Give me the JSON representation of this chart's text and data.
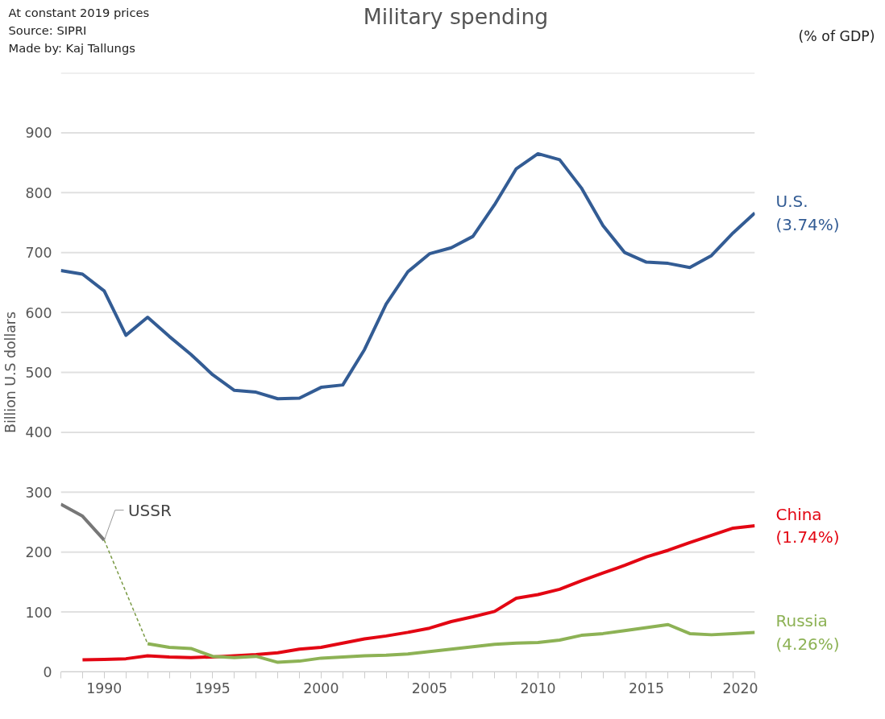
{
  "chart_data": {
    "type": "line",
    "title": "Military spending",
    "ylabel": "Billion U.S dollars",
    "annotations": [
      "At constant 2019 prices",
      "Source: SIPRI",
      "Made by: Kaj Tallungs",
      "(% of GDP)",
      {
        "text": "USSR",
        "x": 1990,
        "y": 220
      }
    ],
    "x": [
      1988,
      1989,
      1990,
      1991,
      1992,
      1993,
      1994,
      1995,
      1996,
      1997,
      1998,
      1999,
      2000,
      2001,
      2002,
      2003,
      2004,
      2005,
      2006,
      2007,
      2008,
      2009,
      2010,
      2011,
      2012,
      2013,
      2014,
      2015,
      2016,
      2017,
      2018,
      2019,
      2020
    ],
    "series": [
      {
        "name": "U.S.\n(3.74%)",
        "color": "#335c94",
        "values": [
          670,
          664,
          636,
          562,
          592,
          560,
          530,
          496,
          470,
          467,
          456,
          457,
          475,
          479,
          538,
          614,
          668,
          698,
          708,
          727,
          780,
          840,
          865,
          855,
          808,
          745,
          700,
          684,
          682,
          675,
          695,
          733,
          766
        ]
      },
      {
        "name": "China\n(1.74%)",
        "color": "#e30613",
        "x": [
          1989,
          1990,
          1991,
          1992,
          1993,
          1994,
          1995,
          1996,
          1997,
          1998,
          1999,
          2000,
          2001,
          2002,
          2003,
          2004,
          2005,
          2006,
          2007,
          2008,
          2009,
          2010,
          2011,
          2012,
          2013,
          2014,
          2015,
          2016,
          2017,
          2018,
          2019,
          2020
        ],
        "values": [
          20,
          21,
          22,
          27,
          25,
          24,
          25,
          27,
          29,
          32,
          38,
          41,
          48,
          55,
          60,
          66,
          73,
          84,
          92,
          101,
          123,
          129,
          138,
          152,
          165,
          178,
          192,
          203,
          216,
          228,
          240,
          244
        ]
      },
      {
        "name": "Russia\n(4.26%)",
        "color": "#8db255",
        "x": [
          1992,
          1993,
          1994,
          1995,
          1996,
          1997,
          1998,
          1999,
          2000,
          2001,
          2002,
          2003,
          2004,
          2005,
          2006,
          2007,
          2008,
          2009,
          2010,
          2011,
          2012,
          2013,
          2014,
          2015,
          2016,
          2017,
          2018,
          2019,
          2020
        ],
        "values": [
          47,
          41,
          39,
          26,
          24,
          26,
          16,
          18,
          23,
          25,
          27,
          28,
          30,
          34,
          38,
          42,
          46,
          48,
          49,
          53,
          61,
          64,
          69,
          74,
          79,
          64,
          62,
          64,
          66
        ]
      },
      {
        "color": "#777777",
        "x": [
          1988,
          1989,
          1990
        ],
        "values": [
          280,
          260,
          220
        ]
      },
      {
        "color": "#7a9a45",
        "x": [
          1990,
          1992
        ],
        "values": [
          220,
          47
        ],
        "line_style": "dashed"
      }
    ],
    "xlim": [
      1988,
      2020
    ],
    "xticks": [
      {
        "value": 1988,
        "label": null
      },
      {
        "value": 1989,
        "label": null
      },
      1990,
      {
        "value": 1991,
        "label": null
      },
      {
        "value": 1992,
        "label": null
      },
      {
        "value": 1993,
        "label": null
      },
      {
        "value": 1994,
        "label": null
      },
      1995,
      {
        "value": 1996,
        "label": null
      },
      {
        "value": 1997,
        "label": null
      },
      {
        "value": 1998,
        "label": null
      },
      {
        "value": 1999,
        "label": null
      },
      2000,
      {
        "value": 2001,
        "label": null
      },
      {
        "value": 2002,
        "label": null
      },
      {
        "value": 2003,
        "label": null
      },
      {
        "value": 2004,
        "label": null
      },
      2005,
      {
        "value": 2006,
        "label": null
      },
      {
        "value": 2007,
        "label": null
      },
      {
        "value": 2008,
        "label": null
      },
      {
        "value": 2009,
        "label": null
      },
      2010,
      {
        "value": 2011,
        "label": null
      },
      {
        "value": 2012,
        "label": null
      },
      {
        "value": 2013,
        "label": null
      },
      {
        "value": 2014,
        "label": null
      },
      2015,
      {
        "value": 2016,
        "label": null
      },
      {
        "value": 2017,
        "label": null
      },
      {
        "value": 2018,
        "label": null
      },
      {
        "value": 2019,
        "label": null
      },
      2020
    ],
    "ylim": [
      0,
      1000
    ],
    "yticks": [
      0,
      100,
      200,
      300,
      400,
      500,
      600,
      700,
      800,
      900,
      {
        "value": 1000,
        "label": null
      }
    ],
    "grid": "y",
    "marker": "none",
    "line_style": "solid"
  }
}
